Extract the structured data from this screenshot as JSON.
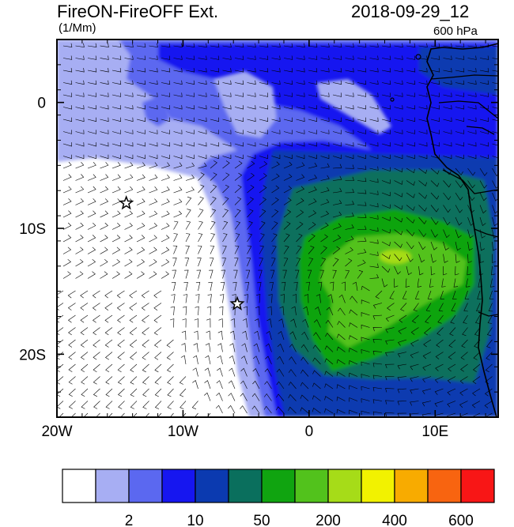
{
  "header": {
    "title": "FireON-FireOFF Ext.",
    "datetime": "2018-09-29_12",
    "units": "(1/Mm)",
    "level": "600 hPa"
  },
  "map": {
    "lon_range": [
      -20,
      15
    ],
    "lat_range": [
      -25,
      5
    ],
    "x_ticks": [
      {
        "value": -20,
        "label": "20W"
      },
      {
        "value": -10,
        "label": "10W"
      },
      {
        "value": 0,
        "label": "0"
      },
      {
        "value": 10,
        "label": "10E"
      }
    ],
    "y_ticks": [
      {
        "value": 0,
        "label": "0"
      },
      {
        "value": -10,
        "label": "10S"
      },
      {
        "value": -20,
        "label": "20S"
      }
    ],
    "markers": [
      {
        "name": "star",
        "lon": -14.5,
        "lat": -8.0
      },
      {
        "name": "star",
        "lon": -5.7,
        "lat": -16.0
      }
    ],
    "overlay": "wind barbs",
    "coastline": "Africa west coast"
  },
  "colorbar": {
    "colors": [
      "#ffffff",
      "#a7aef3",
      "#5b68f0",
      "#1616f0",
      "#0b3ab0",
      "#0a6f5d",
      "#10a410",
      "#52c21c",
      "#a6dc18",
      "#f2f200",
      "#f8ab00",
      "#f86410",
      "#f81616"
    ],
    "labels": [
      {
        "after_box": 1,
        "text": "2"
      },
      {
        "after_box": 3,
        "text": "10"
      },
      {
        "after_box": 5,
        "text": "50"
      },
      {
        "after_box": 7,
        "text": "200"
      },
      {
        "after_box": 9,
        "text": "400"
      },
      {
        "after_box": 11,
        "text": "600"
      }
    ]
  }
}
